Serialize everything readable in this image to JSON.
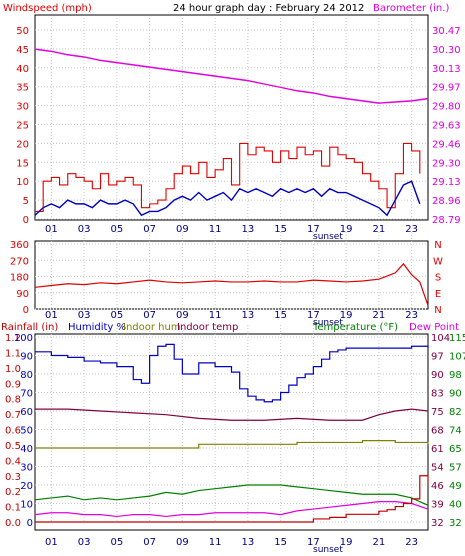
{
  "chart_data": [
    {
      "id": "wind_baro",
      "type": "line",
      "title": "24 hour graph day : February 24 2012",
      "left_axis_label": "Windspeed (mph)",
      "right_axis_label": "Barometer (in.)",
      "left_ticks": [
        "0",
        "5",
        "10",
        "15",
        "20",
        "25",
        "30",
        "35",
        "40",
        "45",
        "50"
      ],
      "right_ticks": [
        "28.79",
        "28.96",
        "29.13",
        "29.30",
        "29.46",
        "29.63",
        "29.80",
        "29.97",
        "30.13",
        "30.30",
        "30.47"
      ],
      "x_ticks": [
        "01",
        "03",
        "05",
        "07",
        "09",
        "11",
        "13",
        "15",
        "17",
        "19",
        "21",
        "23"
      ],
      "marker_label": "sunset",
      "ylim_left": [
        0,
        50
      ],
      "ylim_right": [
        28.79,
        30.47
      ],
      "colors": {
        "gust": "#e00000",
        "speed": "#0000c0",
        "baro": "#e000e0",
        "title": "#000000"
      },
      "series": [
        {
          "name": "gust",
          "x": [
            0,
            0.5,
            1,
            1.5,
            2,
            2.5,
            3,
            3.5,
            4,
            4.5,
            5,
            5.5,
            6,
            6.5,
            7,
            7.5,
            8,
            8.5,
            9,
            9.5,
            10,
            10.5,
            11,
            11.5,
            12,
            12.5,
            13,
            13.5,
            14,
            14.5,
            15,
            15.5,
            16,
            16.5,
            17,
            17.5,
            18,
            18.5,
            19,
            19.5,
            20,
            20.5,
            21,
            21.5,
            22,
            22.5,
            23,
            23.5
          ],
          "values": [
            2,
            10,
            11,
            9,
            12,
            11,
            10,
            8,
            12,
            9,
            10,
            11,
            9,
            3,
            4,
            5,
            8,
            12,
            14,
            12,
            15,
            11,
            13,
            16,
            9,
            20,
            17,
            19,
            18,
            15,
            18,
            16,
            19,
            17,
            18,
            14,
            19,
            17,
            16,
            15,
            12,
            10,
            8,
            3,
            12,
            20,
            18,
            12
          ]
        },
        {
          "name": "speed",
          "x": [
            0,
            0.5,
            1,
            1.5,
            2,
            2.5,
            3,
            3.5,
            4,
            4.5,
            5,
            5.5,
            6,
            6.5,
            7,
            7.5,
            8,
            8.5,
            9,
            9.5,
            10,
            10.5,
            11,
            11.5,
            12,
            12.5,
            13,
            13.5,
            14,
            14.5,
            15,
            15.5,
            16,
            16.5,
            17,
            17.5,
            18,
            18.5,
            19,
            19.5,
            20,
            20.5,
            21,
            21.5,
            22,
            22.5,
            23,
            23.5
          ],
          "values": [
            1,
            3,
            4,
            3,
            5,
            4,
            4,
            3,
            5,
            4,
            4,
            5,
            4,
            1,
            2,
            2,
            3,
            5,
            6,
            5,
            7,
            5,
            6,
            7,
            5,
            8,
            7,
            8,
            7,
            6,
            8,
            7,
            8,
            7,
            8,
            6,
            8,
            7,
            7,
            6,
            5,
            4,
            3,
            1,
            5,
            9,
            10,
            4
          ]
        },
        {
          "name": "barometer",
          "x": [
            0,
            1,
            2,
            3,
            4,
            5,
            6,
            7,
            8,
            9,
            10,
            11,
            12,
            13,
            14,
            15,
            16,
            17,
            18,
            19,
            20,
            21,
            22,
            23,
            24
          ],
          "values": [
            30.3,
            30.28,
            30.25,
            30.23,
            30.2,
            30.18,
            30.16,
            30.14,
            30.12,
            30.1,
            30.08,
            30.06,
            30.04,
            30.02,
            29.99,
            29.96,
            29.93,
            29.91,
            29.88,
            29.86,
            29.84,
            29.82,
            29.83,
            29.84,
            29.86
          ]
        }
      ]
    },
    {
      "id": "winddir",
      "type": "line",
      "left_ticks": [
        "0",
        "90",
        "180",
        "270",
        "360"
      ],
      "right_ticks": [
        "N",
        "E",
        "S",
        "W",
        "N"
      ],
      "x_ticks": [
        "01",
        "03",
        "05",
        "07",
        "09",
        "11",
        "13",
        "15",
        "17",
        "19",
        "21",
        "23"
      ],
      "marker_label": "sunset",
      "ylim": [
        0,
        360
      ],
      "colors": {
        "dir": "#e00000"
      },
      "series": [
        {
          "name": "direction",
          "x": [
            0,
            1,
            2,
            3,
            4,
            5,
            6,
            7,
            8,
            9,
            10,
            11,
            12,
            13,
            14,
            15,
            16,
            17,
            18,
            19,
            20,
            21,
            22,
            22.5,
            23,
            23.5,
            24
          ],
          "values": [
            120,
            130,
            140,
            135,
            145,
            140,
            150,
            160,
            150,
            145,
            150,
            155,
            150,
            150,
            155,
            150,
            150,
            160,
            155,
            150,
            155,
            165,
            200,
            250,
            190,
            150,
            20
          ]
        }
      ]
    },
    {
      "id": "temp_hum_rain",
      "type": "line",
      "labels": {
        "rainfall": "Rainfall (in)",
        "humidity": "Humidity %",
        "indoor_hum": "Indoor hum",
        "indoor_temp": "Indoor temp",
        "temperature": "Temperature (°F)",
        "dew_point": "Dew Point"
      },
      "rain_ticks": [
        "0.0",
        "0.1",
        "0.2",
        "0.3",
        "0.4",
        "0.5",
        "0.6",
        "0.7",
        "0.8",
        "0.9",
        "1.0",
        "1.1",
        "1.2"
      ],
      "humidity_ticks": [
        "0",
        "10",
        "20",
        "30",
        "40",
        "50",
        "60",
        "70",
        "80",
        "90",
        "100"
      ],
      "temp_ticks": [
        "32",
        "40",
        "49",
        "57",
        "65",
        "74",
        "82",
        "90",
        "98",
        "107",
        "115"
      ],
      "extra_right_ticks": [
        "32",
        "39",
        "46",
        "54",
        "61",
        "68",
        "75",
        "83",
        "90",
        "97",
        "104"
      ],
      "x_ticks": [
        "01",
        "03",
        "05",
        "07",
        "09",
        "11",
        "13",
        "15",
        "17",
        "19",
        "21",
        "23"
      ],
      "marker_label": "sunset",
      "colors": {
        "rainfall": "#c00000",
        "humidity": "#0000c0",
        "indoor_hum": "#808000",
        "indoor_temp": "#800040",
        "temperature": "#008000",
        "dew_point": "#e000e0"
      },
      "series": [
        {
          "name": "humidity",
          "x": [
            0,
            1,
            2,
            3,
            4,
            5,
            6,
            6.5,
            7,
            7.5,
            8,
            8.5,
            9,
            10,
            11,
            12,
            12.5,
            13,
            13.5,
            14,
            14.5,
            15,
            15.5,
            16,
            16.5,
            17,
            17.5,
            18,
            18.5,
            19,
            20,
            21,
            22,
            23,
            24
          ],
          "values": [
            92,
            90,
            89,
            87,
            86,
            84,
            77,
            75,
            90,
            95,
            96,
            88,
            80,
            86,
            84,
            81,
            72,
            68,
            66,
            65,
            66,
            70,
            74,
            78,
            80,
            84,
            88,
            92,
            93,
            94,
            94,
            94,
            94,
            95,
            94
          ]
        },
        {
          "name": "indoor_temp",
          "x": [
            0,
            2,
            4,
            6,
            8,
            10,
            12,
            14,
            16,
            18,
            20,
            21,
            22,
            23,
            24
          ],
          "values": [
            61,
            61,
            60,
            59,
            58,
            56,
            55,
            55,
            56,
            55,
            55,
            58,
            60,
            61,
            60
          ]
        },
        {
          "name": "indoor_hum",
          "x": [
            0,
            2,
            4,
            6,
            8,
            10,
            12,
            14,
            16,
            18,
            20,
            22,
            24
          ],
          "values": [
            40,
            40,
            40,
            40,
            40,
            42,
            42,
            42,
            43,
            43,
            44,
            43,
            42
          ]
        },
        {
          "name": "temperature",
          "x": [
            0,
            1,
            2,
            3,
            4,
            5,
            6,
            7,
            8,
            9,
            10,
            11,
            12,
            13,
            14,
            15,
            16,
            17,
            18,
            19,
            20,
            21,
            22,
            23,
            24
          ],
          "values": [
            12,
            13,
            14,
            12,
            13,
            12,
            13,
            14,
            16,
            15,
            17,
            18,
            19,
            20,
            20,
            20,
            19,
            18,
            17,
            16,
            15,
            15,
            15,
            13,
            9
          ]
        },
        {
          "name": "dew_point",
          "x": [
            0,
            1,
            2,
            3,
            4,
            5,
            6,
            7,
            8,
            9,
            10,
            11,
            12,
            13,
            14,
            15,
            16,
            17,
            18,
            19,
            20,
            21,
            22,
            23,
            24
          ],
          "values": [
            4,
            5,
            5,
            4,
            4,
            3,
            4,
            4,
            3,
            4,
            4,
            5,
            5,
            5,
            5,
            4,
            6,
            7,
            8,
            9,
            10,
            11,
            11,
            10,
            7
          ]
        },
        {
          "name": "rainfall",
          "x": [
            0,
            15,
            16,
            17,
            18,
            19,
            20,
            21,
            21.5,
            22,
            22.5,
            23,
            23.5,
            24
          ],
          "values": [
            0.0,
            0.0,
            0.0,
            0.02,
            0.03,
            0.05,
            0.05,
            0.07,
            0.08,
            0.1,
            0.12,
            0.15,
            0.3,
            0.25
          ]
        }
      ]
    }
  ]
}
